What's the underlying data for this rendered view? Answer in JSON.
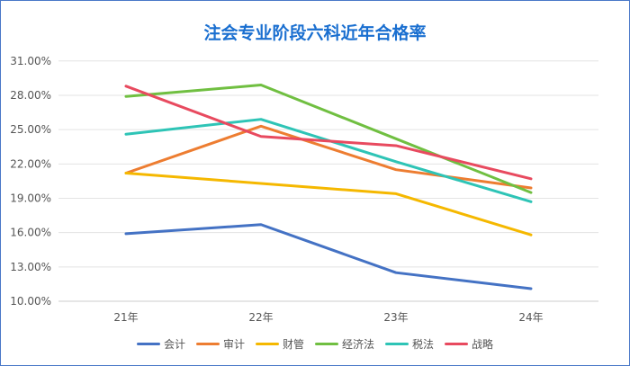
{
  "chart_data": {
    "type": "line",
    "title": "注会专业阶段六科近年合格率",
    "categories": [
      "21年",
      "22年",
      "23年",
      "24年"
    ],
    "ylim": [
      10,
      31
    ],
    "yticks": [
      "10.00%",
      "13.00%",
      "16.00%",
      "19.00%",
      "22.00%",
      "25.00%",
      "28.00%",
      "31.00%"
    ],
    "grid": true,
    "legend_position": "bottom",
    "series": [
      {
        "name": "会计",
        "color": "#4472c4",
        "values": [
          15.9,
          16.7,
          12.5,
          11.1
        ]
      },
      {
        "name": "审计",
        "color": "#ed7d31",
        "values": [
          21.2,
          25.3,
          21.5,
          19.9
        ]
      },
      {
        "name": "财管",
        "color": "#f5b800",
        "values": [
          21.2,
          20.3,
          19.4,
          15.8
        ]
      },
      {
        "name": "经济法",
        "color": "#70bf41",
        "values": [
          27.9,
          28.9,
          24.2,
          19.5
        ]
      },
      {
        "name": "税法",
        "color": "#2ec4b6",
        "values": [
          24.6,
          25.9,
          22.2,
          18.7
        ]
      },
      {
        "name": "战略",
        "color": "#e84a5f",
        "values": [
          28.8,
          24.4,
          23.6,
          20.7
        ]
      }
    ]
  }
}
